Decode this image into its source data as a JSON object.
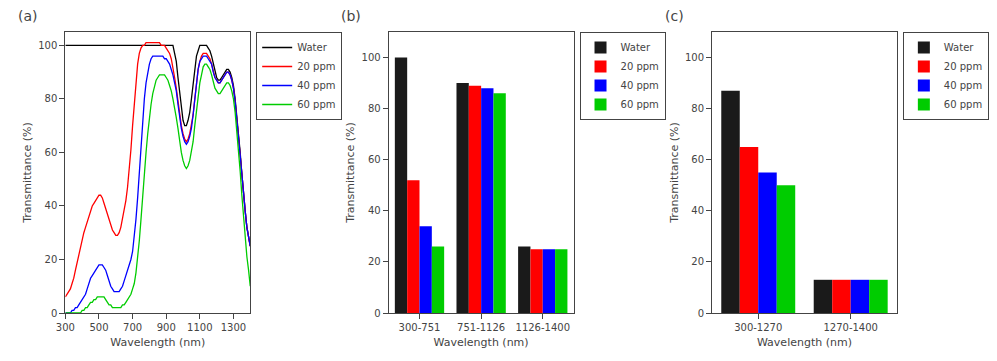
{
  "chart_data": [
    {
      "type": "line",
      "title": "(a)",
      "x_label": "Wavelength (nm)",
      "y_label": "Transmittance (%)",
      "xlim": [
        300,
        1400
      ],
      "ylim": [
        0,
        105
      ],
      "xticks": [
        300,
        500,
        700,
        900,
        1100,
        1300
      ],
      "yticks": [
        0,
        20,
        40,
        60,
        80,
        100
      ],
      "grid": false,
      "legend": "upper right",
      "x": [
        300,
        310,
        320,
        330,
        340,
        350,
        360,
        370,
        380,
        390,
        400,
        410,
        420,
        430,
        440,
        450,
        460,
        470,
        480,
        490,
        500,
        510,
        520,
        530,
        540,
        550,
        560,
        570,
        580,
        590,
        600,
        610,
        620,
        630,
        640,
        650,
        660,
        670,
        680,
        690,
        700,
        710,
        720,
        730,
        740,
        750,
        760,
        770,
        780,
        790,
        800,
        810,
        820,
        830,
        840,
        850,
        860,
        870,
        880,
        890,
        900,
        910,
        920,
        930,
        940,
        950,
        960,
        970,
        980,
        990,
        1000,
        1010,
        1020,
        1030,
        1040,
        1050,
        1060,
        1070,
        1080,
        1090,
        1100,
        1110,
        1120,
        1130,
        1140,
        1150,
        1160,
        1170,
        1180,
        1190,
        1200,
        1210,
        1220,
        1230,
        1240,
        1250,
        1260,
        1270,
        1280,
        1290,
        1300,
        1310,
        1320,
        1330,
        1340,
        1350,
        1360,
        1370,
        1380,
        1390,
        1400
      ],
      "series": [
        {
          "name": "Water",
          "color": "#000000",
          "values": [
            100,
            100,
            100,
            100,
            100,
            100,
            100,
            100,
            100,
            100,
            100,
            100,
            100,
            100,
            100,
            100,
            100,
            100,
            100,
            100,
            100,
            100,
            100,
            100,
            100,
            100,
            100,
            100,
            100,
            100,
            100,
            100,
            100,
            100,
            100,
            100,
            100,
            100,
            100,
            100,
            100,
            100,
            100,
            100,
            100,
            100,
            100,
            100,
            100,
            100,
            100,
            100,
            100,
            100,
            100,
            100,
            100,
            100,
            100,
            100,
            100,
            100,
            100,
            100,
            100,
            97,
            94,
            88,
            82,
            76,
            72,
            70,
            70,
            72,
            75,
            80,
            86,
            92,
            96,
            98,
            100,
            100,
            100,
            100,
            100,
            99,
            98,
            96,
            93,
            90,
            88,
            87,
            87,
            88,
            89,
            90,
            91,
            91,
            90,
            88,
            85,
            80,
            74,
            67,
            60,
            52,
            44,
            38,
            32,
            28,
            25
          ]
        },
        {
          "name": "20 ppm",
          "color": "#ff0000",
          "values": [
            6,
            7,
            8,
            9,
            11,
            13,
            16,
            19,
            22,
            25,
            28,
            30,
            32,
            34,
            36,
            38,
            40,
            41,
            42,
            43,
            44,
            44,
            43,
            41,
            39,
            37,
            35,
            33,
            31,
            30,
            29,
            29,
            30,
            32,
            35,
            38,
            42,
            47,
            53,
            61,
            70,
            79,
            87,
            93,
            97,
            99,
            100,
            100,
            101,
            101,
            101,
            101,
            101,
            101,
            101,
            101,
            101,
            100,
            100,
            100,
            99,
            98,
            97,
            95,
            92,
            88,
            84,
            79,
            74,
            70,
            67,
            65,
            64,
            65,
            67,
            70,
            74,
            80,
            86,
            91,
            94,
            96,
            97,
            97,
            97,
            96,
            95,
            93,
            90,
            88,
            87,
            86,
            86,
            87,
            88,
            89,
            90,
            90,
            89,
            87,
            84,
            79,
            73,
            66,
            59,
            52,
            44,
            38,
            32,
            28,
            25
          ]
        },
        {
          "name": "40 ppm",
          "color": "#0000ff",
          "values": [
            0,
            0,
            0,
            0,
            1,
            1,
            2,
            2,
            3,
            4,
            5,
            6,
            7,
            9,
            11,
            13,
            14,
            15,
            16,
            17,
            18,
            18,
            18,
            17,
            16,
            14,
            12,
            10,
            9,
            8,
            8,
            8,
            8,
            9,
            10,
            12,
            14,
            16,
            18,
            20,
            23,
            28,
            35,
            43,
            53,
            63,
            72,
            80,
            86,
            90,
            93,
            95,
            96,
            96,
            96,
            96,
            96,
            96,
            96,
            95,
            95,
            94,
            93,
            91,
            89,
            86,
            83,
            78,
            73,
            69,
            66,
            64,
            63,
            64,
            66,
            69,
            74,
            80,
            86,
            91,
            94,
            95,
            96,
            96,
            96,
            95,
            94,
            93,
            90,
            88,
            87,
            86,
            86,
            87,
            88,
            89,
            90,
            90,
            89,
            87,
            84,
            79,
            73,
            66,
            59,
            52,
            44,
            38,
            32,
            28,
            25
          ]
        },
        {
          "name": "60 ppm",
          "color": "#00cc00",
          "values": [
            0,
            0,
            0,
            0,
            0,
            0,
            0,
            0,
            0,
            0,
            1,
            1,
            2,
            2,
            3,
            4,
            4,
            5,
            5,
            6,
            6,
            6,
            6,
            6,
            5,
            4,
            3,
            3,
            2,
            2,
            2,
            2,
            2,
            2,
            3,
            3,
            4,
            5,
            6,
            7,
            9,
            11,
            15,
            20,
            27,
            35,
            44,
            52,
            60,
            67,
            73,
            78,
            82,
            85,
            87,
            88,
            89,
            89,
            89,
            89,
            88,
            87,
            85,
            83,
            80,
            77,
            73,
            69,
            64,
            60,
            57,
            55,
            54,
            55,
            57,
            60,
            64,
            70,
            76,
            82,
            86,
            89,
            92,
            93,
            93,
            92,
            91,
            89,
            86,
            84,
            83,
            82,
            82,
            83,
            84,
            85,
            86,
            86,
            85,
            83,
            80,
            75,
            68,
            60,
            53,
            44,
            35,
            27,
            21,
            16,
            10
          ]
        }
      ]
    },
    {
      "type": "bar",
      "title": "(b)",
      "x_label": "Wavelength (nm)",
      "y_label": "Transmittance (%)",
      "categories": [
        "300-751",
        "751-1126",
        "1126-1400"
      ],
      "ylim": [
        0,
        110
      ],
      "yticks": [
        0,
        20,
        40,
        60,
        80,
        100
      ],
      "grid": false,
      "legend": "upper right",
      "series": [
        {
          "name": "Water",
          "color": "#1a1a1a",
          "values": [
            100,
            90,
            26
          ]
        },
        {
          "name": "20 ppm",
          "color": "#ff0000",
          "values": [
            52,
            89,
            25
          ]
        },
        {
          "name": "40 ppm",
          "color": "#0000ff",
          "values": [
            34,
            88,
            25
          ]
        },
        {
          "name": "60 ppm",
          "color": "#00cc00",
          "values": [
            26,
            86,
            25
          ]
        }
      ]
    },
    {
      "type": "bar",
      "title": "(c)",
      "x_label": "Wavelength (nm)",
      "y_label": "Transmittance (%)",
      "categories": [
        "300-1270",
        "1270-1400"
      ],
      "ylim": [
        0,
        110
      ],
      "yticks": [
        0,
        20,
        40,
        60,
        80,
        100
      ],
      "grid": false,
      "legend": "upper right",
      "series": [
        {
          "name": "Water",
          "color": "#1a1a1a",
          "values": [
            87,
            13
          ]
        },
        {
          "name": "20 ppm",
          "color": "#ff0000",
          "values": [
            65,
            13
          ]
        },
        {
          "name": "40 ppm",
          "color": "#0000ff",
          "values": [
            55,
            13
          ]
        },
        {
          "name": "60 ppm",
          "color": "#00cc00",
          "values": [
            50,
            13
          ]
        }
      ]
    }
  ]
}
